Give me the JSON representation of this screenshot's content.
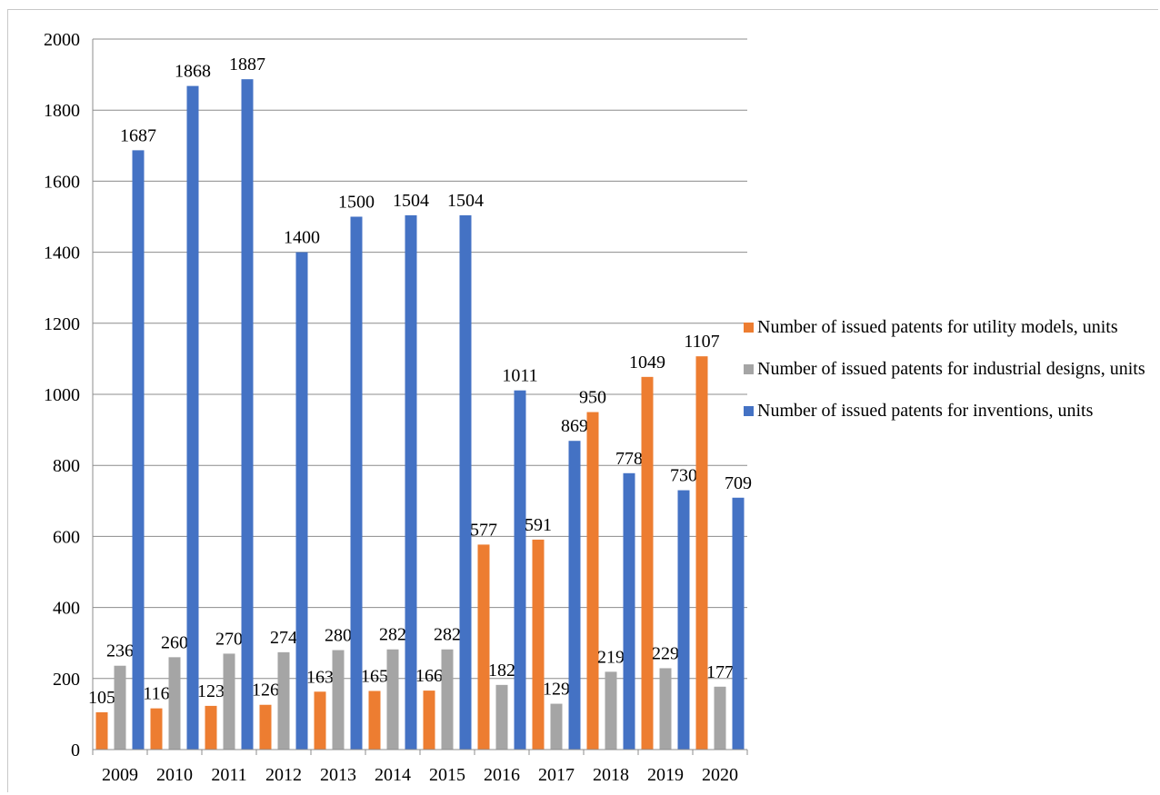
{
  "chart_data": {
    "type": "bar",
    "title": "",
    "xlabel": "",
    "ylabel": "",
    "ylim": [
      0,
      2000
    ],
    "ytick_step": 200,
    "grid": true,
    "legend_position": "right",
    "categories": [
      "2009",
      "2010",
      "2011",
      "2012",
      "2013",
      "2014",
      "2015",
      "2016",
      "2017",
      "2018",
      "2019",
      "2020"
    ],
    "series": [
      {
        "name": "Number of issued patents for utility models, units",
        "color": "#ED7D31",
        "values": [
          105,
          116,
          123,
          126,
          163,
          165,
          166,
          577,
          591,
          950,
          1049,
          1107
        ]
      },
      {
        "name": "Number of issued patents for industrial designs, units",
        "color": "#A5A5A5",
        "values": [
          236,
          260,
          270,
          274,
          280,
          282,
          282,
          182,
          129,
          219,
          229,
          177
        ]
      },
      {
        "name": "Number of issued patents for inventions, units",
        "color": "#4472C4",
        "values": [
          1687,
          1868,
          1887,
          1400,
          1500,
          1504,
          1504,
          1011,
          869,
          778,
          730,
          709
        ]
      }
    ]
  }
}
